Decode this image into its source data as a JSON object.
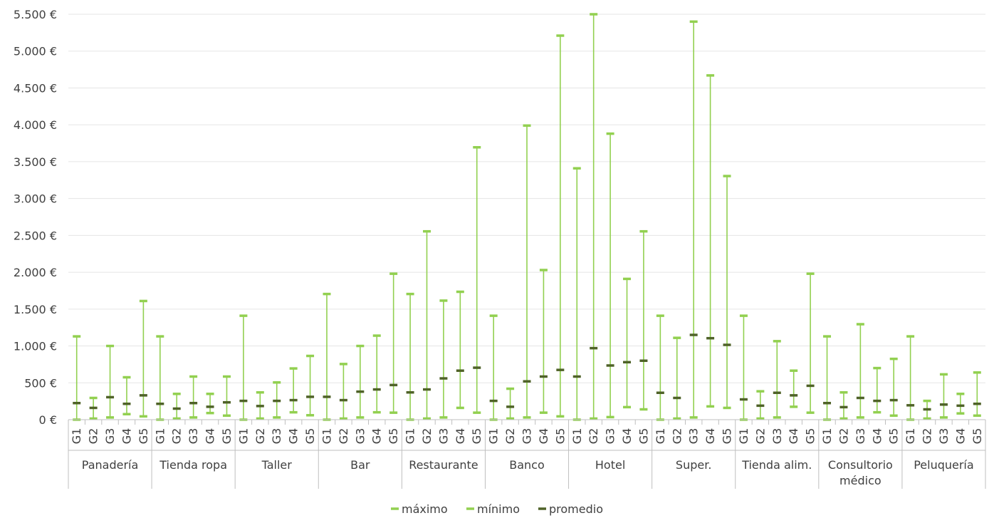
{
  "chart_data": {
    "type": "stock",
    "title": "",
    "xlabel": "",
    "ylabel": "",
    "ylim": [
      0,
      5500
    ],
    "yticks": [
      0,
      500,
      1000,
      1500,
      2000,
      2500,
      3000,
      3500,
      4000,
      4500,
      5000,
      5500
    ],
    "ytick_labels": [
      "0 €",
      "500 €",
      "1.000 €",
      "1.500 €",
      "2.000 €",
      "2.500 €",
      "3.000 €",
      "3.500 €",
      "4.000 €",
      "4.500 €",
      "5.000 €",
      "5.500 €"
    ],
    "grid": true,
    "legend_position": "bottom",
    "subcategories": [
      "G1",
      "G2",
      "G3",
      "G4",
      "G5"
    ],
    "colors": {
      "maximo": "#92d050",
      "minimo": "#92d050",
      "promedio": "#4f6228",
      "whisker": "#92d050",
      "grid": "#e5e5e5",
      "axis": "#bfbfbf"
    },
    "series_names": [
      "máximo",
      "mínimo",
      "promedio"
    ],
    "groups": [
      {
        "label": "Panadería",
        "label_lines": [
          "Panadería"
        ],
        "maximo": [
          1130,
          295,
          1000,
          575,
          1610
        ],
        "minimo": [
          0,
          15,
          30,
          75,
          45
        ],
        "promedio": [
          225,
          160,
          305,
          215,
          330
        ]
      },
      {
        "label": "Tienda ropa",
        "label_lines": [
          "Tienda ropa"
        ],
        "maximo": [
          1130,
          350,
          585,
          350,
          585
        ],
        "minimo": [
          0,
          15,
          30,
          90,
          55
        ],
        "promedio": [
          215,
          150,
          225,
          175,
          235
        ]
      },
      {
        "label": "Taller",
        "label_lines": [
          "Taller"
        ],
        "maximo": [
          1410,
          370,
          505,
          695,
          865
        ],
        "minimo": [
          0,
          15,
          30,
          100,
          60
        ],
        "promedio": [
          255,
          185,
          255,
          265,
          310
        ]
      },
      {
        "label": "Bar",
        "label_lines": [
          "Bar"
        ],
        "maximo": [
          1705,
          755,
          1000,
          1140,
          1980
        ],
        "minimo": [
          0,
          15,
          30,
          100,
          95
        ],
        "promedio": [
          310,
          265,
          380,
          410,
          470
        ]
      },
      {
        "label": "Restaurante",
        "label_lines": [
          "Restaurante"
        ],
        "maximo": [
          1705,
          2555,
          1615,
          1735,
          3695
        ],
        "minimo": [
          0,
          15,
          30,
          160,
          95
        ],
        "promedio": [
          370,
          410,
          560,
          665,
          705
        ]
      },
      {
        "label": "Banco",
        "label_lines": [
          "Banco"
        ],
        "maximo": [
          1410,
          420,
          3990,
          2030,
          5210
        ],
        "minimo": [
          0,
          15,
          30,
          95,
          45
        ],
        "promedio": [
          255,
          175,
          520,
          585,
          675
        ]
      },
      {
        "label": "Hotel",
        "label_lines": [
          "Hotel"
        ],
        "maximo": [
          3410,
          5500,
          3880,
          1910,
          2555
        ],
        "minimo": [
          0,
          15,
          35,
          170,
          140
        ],
        "promedio": [
          585,
          970,
          735,
          780,
          800
        ]
      },
      {
        "label": "Super.",
        "label_lines": [
          "Super."
        ],
        "maximo": [
          1410,
          1110,
          5400,
          4670,
          3305
        ],
        "minimo": [
          0,
          15,
          30,
          180,
          160
        ],
        "promedio": [
          365,
          295,
          1150,
          1105,
          1015
        ]
      },
      {
        "label": "Tienda alim.",
        "label_lines": [
          "Tienda alim."
        ],
        "maximo": [
          1410,
          385,
          1065,
          665,
          1980
        ],
        "minimo": [
          0,
          15,
          30,
          175,
          95
        ],
        "promedio": [
          275,
          190,
          365,
          330,
          460
        ]
      },
      {
        "label": "Consultorio médico",
        "label_lines": [
          "Consultorio",
          "médico"
        ],
        "maximo": [
          1130,
          370,
          1295,
          700,
          825
        ],
        "minimo": [
          0,
          15,
          30,
          100,
          55
        ],
        "promedio": [
          225,
          170,
          295,
          255,
          265
        ]
      },
      {
        "label": "Peluquería",
        "label_lines": [
          "Peluquería"
        ],
        "maximo": [
          1130,
          255,
          615,
          350,
          640
        ],
        "minimo": [
          0,
          15,
          30,
          85,
          55
        ],
        "promedio": [
          195,
          140,
          205,
          190,
          215
        ]
      }
    ]
  }
}
